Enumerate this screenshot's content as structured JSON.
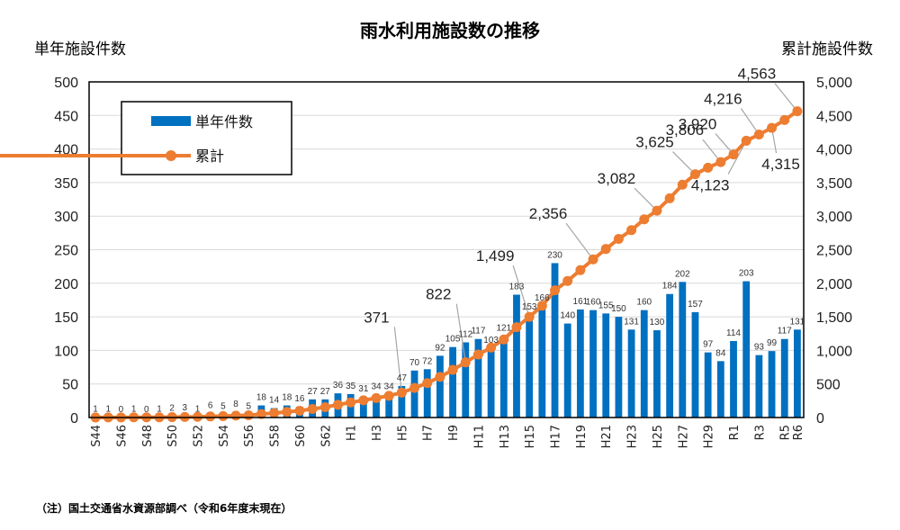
{
  "chart_data": {
    "type": "bar+line",
    "title": "雨水利用施設数の推移",
    "ylabel_left": "単年施設件数",
    "ylabel_right": "累計施設件数",
    "ylim_left": [
      0,
      500
    ],
    "ylim_right": [
      0,
      5000
    ],
    "yticks_left": [
      "0",
      "50",
      "100",
      "150",
      "200",
      "250",
      "300",
      "350",
      "400",
      "450",
      "500"
    ],
    "yticks_right": [
      "0",
      "500",
      "1,000",
      "1,500",
      "2,000",
      "2,500",
      "3,000",
      "3,500",
      "4,000",
      "4,500",
      "5,000"
    ],
    "grid": true,
    "legend": {
      "position": "top-left",
      "entries": [
        "単年件数",
        "累計"
      ]
    },
    "categories": [
      "S44",
      "S45",
      "S46",
      "S47",
      "S48",
      "S49",
      "S50",
      "S51",
      "S52",
      "S53",
      "S54",
      "S55",
      "S56",
      "S57",
      "S58",
      "S59",
      "S60",
      "S61",
      "S62",
      "S63",
      "H1",
      "H2",
      "H3",
      "H4",
      "H5",
      "H6",
      "H7",
      "H8",
      "H9",
      "H10",
      "H11",
      "H12",
      "H13",
      "H14",
      "H15",
      "H16",
      "H17",
      "H18",
      "H19",
      "H20",
      "H21",
      "H22",
      "H23",
      "H24",
      "H25",
      "H26",
      "H27",
      "H28",
      "H29",
      "H30",
      "R1",
      "R2",
      "R3",
      "R4",
      "R5",
      "R6"
    ],
    "xtick_labels": [
      "S44",
      "",
      "S46",
      "",
      "S48",
      "",
      "S50",
      "",
      "S52",
      "",
      "S54",
      "",
      "S56",
      "",
      "S58",
      "",
      "S60",
      "",
      "S62",
      "",
      "H1",
      "",
      "H3",
      "",
      "H5",
      "",
      "H7",
      "",
      "H9",
      "",
      "H11",
      "",
      "H13",
      "",
      "H15",
      "",
      "H17",
      "",
      "H19",
      "",
      "H21",
      "",
      "H23",
      "",
      "H25",
      "",
      "H27",
      "",
      "H29",
      "",
      "R1",
      "",
      "R3",
      "",
      "R5",
      "R6"
    ],
    "series": [
      {
        "name": "単年件数",
        "type": "bar",
        "axis": "left",
        "color": "#0070C0",
        "values": [
          1,
          1,
          0,
          1,
          0,
          1,
          2,
          3,
          1,
          6,
          5,
          8,
          5,
          18,
          14,
          18,
          16,
          27,
          27,
          36,
          35,
          31,
          34,
          34,
          47,
          70,
          72,
          92,
          105,
          112,
          117,
          103,
          121,
          183,
          153,
          166,
          230,
          140,
          161,
          160,
          155,
          150,
          131,
          160,
          130,
          184,
          202,
          157,
          97,
          84,
          114,
          203,
          93,
          99,
          117,
          131
        ]
      },
      {
        "name": "累計",
        "type": "line",
        "axis": "right",
        "color": "#ED7D31",
        "values": [
          1,
          2,
          2,
          3,
          3,
          4,
          6,
          9,
          10,
          16,
          21,
          29,
          34,
          52,
          66,
          84,
          100,
          127,
          154,
          190,
          225,
          256,
          290,
          324,
          371,
          441,
          513,
          605,
          710,
          822,
          939,
          1042,
          1163,
          1346,
          1499,
          1665,
          1895,
          2035,
          2196,
          2356,
          2511,
          2661,
          2792,
          2952,
          3082,
          3266,
          3468,
          3625,
          3722,
          3806,
          3920,
          4123,
          4216,
          4315,
          4432,
          4563
        ]
      }
    ],
    "cumulative_annotations": [
      {
        "category": "H5",
        "label": "371"
      },
      {
        "category": "H10",
        "label": "822"
      },
      {
        "category": "H15",
        "label": "1,499"
      },
      {
        "category": "H20",
        "label": "2,356"
      },
      {
        "category": "H25",
        "label": "3,082"
      },
      {
        "category": "H28",
        "label": "3,625"
      },
      {
        "category": "H30",
        "label": "3,806"
      },
      {
        "category": "R1",
        "label": "3,920"
      },
      {
        "category": "R2",
        "label": "4,123"
      },
      {
        "category": "R3",
        "label": "4,216"
      },
      {
        "category": "R4",
        "label": "4,315"
      },
      {
        "category": "R6",
        "label": "4,563"
      }
    ]
  },
  "note": "（注）国土交通省水資源部調べ（令和6年度末現在）"
}
